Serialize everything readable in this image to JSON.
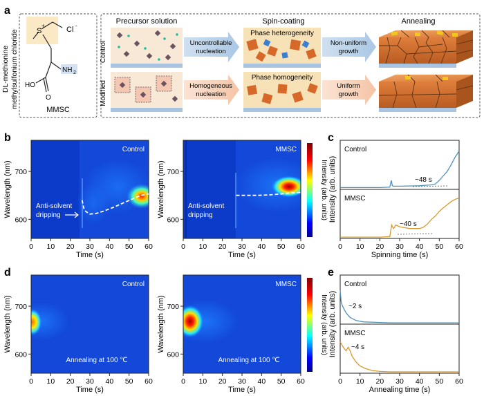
{
  "panel_labels": {
    "a": "a",
    "b": "b",
    "c": "c",
    "d": "d",
    "e": "e"
  },
  "panel_a": {
    "compound_name_line1": "DL-methionine",
    "compound_name_line2": "methylsulfonium chloride",
    "compound_abbrev": "MMSC",
    "chem": {
      "s_plus": "S",
      "plus": "+",
      "cl": "Cl",
      "cl_charge": "-",
      "nh2": "NH",
      "nh2_sub": "2",
      "ho": "HO",
      "o": "O"
    },
    "stage_titles": [
      "Precursor solution",
      "Spin-coating",
      "Annealing"
    ],
    "row_labels": [
      "Control",
      "Modified"
    ],
    "control_arrows": [
      [
        "Uncontrollable",
        "nucleation"
      ],
      [
        "Non-uniform",
        "growth"
      ]
    ],
    "modified_arrows": [
      [
        "Homogeneous",
        "nucleation"
      ],
      [
        "Uniform",
        "growth"
      ]
    ],
    "control_phase": "Phase heterogeneity",
    "modified_phase": "Phase homogeneity"
  },
  "panel_b": {
    "maps": [
      {
        "label": "Control",
        "annotation": [
          "Anti-solvent",
          "dripping"
        ],
        "trace_x": [
          26,
          27,
          28,
          30,
          33,
          37,
          42,
          47,
          52,
          56,
          60
        ],
        "trace_y": [
          640,
          622,
          616,
          611,
          612,
          617,
          625,
          634,
          643,
          650,
          653
        ]
      },
      {
        "label": "MMSC",
        "annotation": [
          "Anti-solvent",
          "dripping"
        ],
        "trace_x": [
          27,
          32,
          38,
          44,
          50,
          55,
          60
        ],
        "trace_y": [
          650,
          650,
          650,
          651,
          653,
          655,
          656
        ]
      }
    ],
    "xlabel": "Time (s)",
    "ylabel": "Wavelength (nm)",
    "xticks": [
      0,
      10,
      20,
      30,
      40,
      50,
      60
    ],
    "xlim": [
      0,
      60
    ],
    "yticks": [
      600,
      700
    ],
    "ylim": [
      560,
      765
    ],
    "colorbar_label": "Intensity (arb. units)"
  },
  "panel_c": {
    "xlabel": "Spinning time (s)",
    "ylabel": "Intensity (arb. units)",
    "xticks": [
      0,
      10,
      20,
      30,
      40,
      50,
      60
    ],
    "series": [
      {
        "name": "Control",
        "annotation": "~48 s",
        "color": "#4e8fb8",
        "x": [
          0,
          10,
          20,
          25,
          25.8,
          26.3,
          27,
          30,
          40,
          46,
          48,
          50,
          52,
          54,
          56,
          58,
          60
        ],
        "y": [
          0.04,
          0.04,
          0.04,
          0.05,
          0.2,
          0.08,
          0.07,
          0.07,
          0.08,
          0.1,
          0.12,
          0.2,
          0.3,
          0.4,
          0.55,
          0.72,
          0.85
        ]
      },
      {
        "name": "MMSC",
        "annotation": "~40 s",
        "color": "#d99a2b",
        "x": [
          0,
          10,
          20,
          25,
          26,
          26.5,
          27,
          28,
          30,
          35,
          40,
          42,
          44,
          46,
          48,
          50,
          52,
          54,
          56,
          58,
          60
        ],
        "y": [
          0.03,
          0.03,
          0.03,
          0.04,
          0.3,
          0.25,
          0.22,
          0.3,
          0.26,
          0.22,
          0.22,
          0.25,
          0.32,
          0.42,
          0.5,
          0.6,
          0.68,
          0.75,
          0.82,
          0.87,
          0.9
        ]
      }
    ]
  },
  "panel_d": {
    "maps": [
      {
        "label": "Control",
        "annotation": "Annealing at 100 ℃"
      },
      {
        "label": "MMSC",
        "annotation": "Annealing at 100 ℃"
      }
    ],
    "xlabel": "Time (s)",
    "ylabel": "Wavelength (nm)",
    "xticks": [
      0,
      10,
      20,
      30,
      40,
      50,
      60
    ],
    "xlim": [
      0,
      60
    ],
    "yticks": [
      600,
      700
    ],
    "ylim": [
      560,
      765
    ],
    "colorbar_label": "Intensity (arb. units)"
  },
  "panel_e": {
    "xlabel": "Annealing time (s)",
    "ylabel": "Intensity (arb. units)",
    "xticks": [
      0,
      10,
      20,
      30,
      40,
      50,
      60
    ],
    "series": [
      {
        "name": "Control",
        "annotation": "~2 s",
        "color": "#4e8fb8",
        "x": [
          0,
          0.5,
          1,
          2,
          3,
          5,
          8,
          12,
          18,
          25,
          35,
          60
        ],
        "y": [
          0.75,
          0.5,
          0.42,
          0.33,
          0.25,
          0.15,
          0.08,
          0.05,
          0.04,
          0.03,
          0.03,
          0.03
        ]
      },
      {
        "name": "MMSC",
        "annotation": "~4 s",
        "color": "#d99a2b",
        "x": [
          0,
          1,
          2,
          3,
          4,
          5,
          6,
          8,
          10,
          13,
          16,
          20,
          25,
          35,
          60
        ],
        "y": [
          0.7,
          0.62,
          0.55,
          0.5,
          0.58,
          0.5,
          0.38,
          0.25,
          0.16,
          0.1,
          0.06,
          0.04,
          0.03,
          0.03,
          0.03
        ]
      }
    ]
  }
}
